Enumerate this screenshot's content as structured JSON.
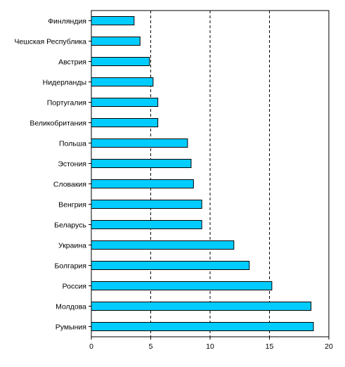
{
  "chart_data": {
    "type": "bar",
    "orientation": "horizontal",
    "title": "",
    "xlabel": "",
    "ylabel": "",
    "categories": [
      "Финляндия",
      "Чешская Республика",
      "Австрия",
      "Нидерланды",
      "Португалия",
      "Великобритания",
      "Польша",
      "Эстония",
      "Словакия",
      "Венгрия",
      "Беларусь",
      "Украина",
      "Болгария",
      "Россия",
      "Молдова",
      "Румыния"
    ],
    "values": [
      3.6,
      4.1,
      4.9,
      5.2,
      5.6,
      5.6,
      8.1,
      8.4,
      8.6,
      9.3,
      9.3,
      12.0,
      13.3,
      15.2,
      18.5,
      18.7
    ],
    "xlim": [
      0,
      20
    ],
    "xticks": [
      "0",
      "5",
      "10",
      "15",
      "20"
    ],
    "grid": "vertical dashed",
    "legend": "none",
    "colors": {
      "bar_fill": "#00CCFF",
      "bar_stroke": "#000000",
      "grid": "#000000"
    }
  }
}
